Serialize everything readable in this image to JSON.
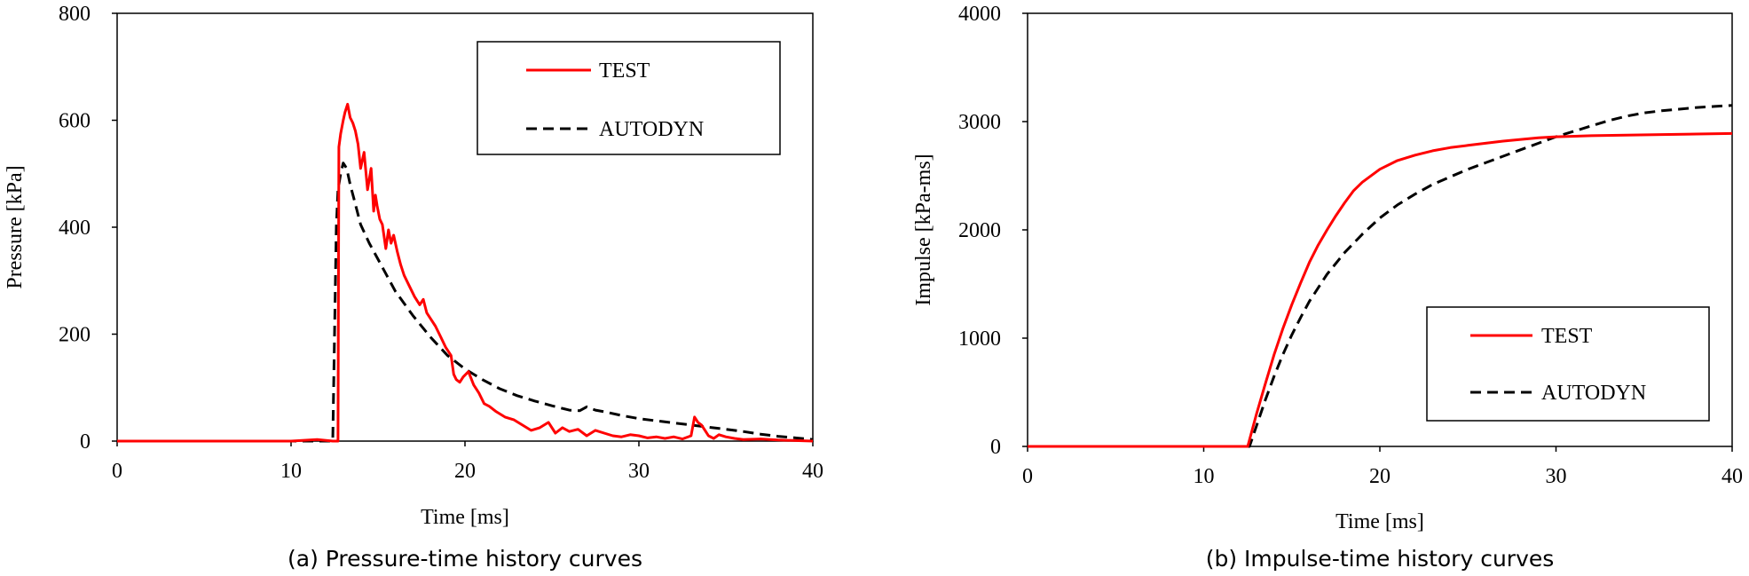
{
  "colors": {
    "test": "#ff0000",
    "autodyn": "#000000"
  },
  "chart_data": [
    {
      "type": "line",
      "caption": "(a) Pressure-time history curves",
      "xlabel": "Time [ms]",
      "ylabel": "Pressure [kPa]",
      "xlim": [
        0,
        40
      ],
      "ylim": [
        0,
        800
      ],
      "xticks": [
        "0",
        "10",
        "20",
        "30",
        "40"
      ],
      "yticks": [
        "0",
        "200",
        "400",
        "600",
        "800"
      ],
      "grid": false,
      "legend_position": "top-right",
      "series": [
        {
          "name": "TEST",
          "color": "#ff0000",
          "dash": "solid",
          "x": [
            0,
            5,
            10,
            11.5,
            12.4,
            12.7,
            12.75,
            12.85,
            13.0,
            13.1,
            13.25,
            13.4,
            13.55,
            13.7,
            13.85,
            14.0,
            14.2,
            14.4,
            14.6,
            14.75,
            14.85,
            14.95,
            15.1,
            15.25,
            15.45,
            15.6,
            15.75,
            15.9,
            16.1,
            16.3,
            16.5,
            16.8,
            17.1,
            17.4,
            17.6,
            17.8,
            18.0,
            18.3,
            18.6,
            18.9,
            19.2,
            19.35,
            19.5,
            19.7,
            19.9,
            20.2,
            20.5,
            20.8,
            21.1,
            21.4,
            21.8,
            22.3,
            22.8,
            23.3,
            23.8,
            24.3,
            24.8,
            25.2,
            25.6,
            26.0,
            26.5,
            27.0,
            27.5,
            28.0,
            28.5,
            29.0,
            29.5,
            30.0,
            30.5,
            31.0,
            31.5,
            32.0,
            32.5,
            33.0,
            33.2,
            33.4,
            33.6,
            33.8,
            34.0,
            34.3,
            34.6,
            35.0,
            35.5,
            36.0,
            37.0,
            38.0,
            39.0,
            40.0
          ],
          "y": [
            0,
            0,
            0,
            3,
            0,
            0,
            550,
            575,
            600,
            615,
            630,
            605,
            595,
            580,
            555,
            510,
            540,
            470,
            510,
            430,
            460,
            440,
            415,
            405,
            360,
            395,
            370,
            385,
            355,
            330,
            310,
            290,
            270,
            255,
            265,
            240,
            230,
            215,
            195,
            175,
            160,
            125,
            115,
            110,
            120,
            130,
            105,
            90,
            70,
            65,
            55,
            45,
            40,
            30,
            20,
            25,
            35,
            15,
            25,
            18,
            22,
            10,
            20,
            15,
            10,
            8,
            12,
            10,
            6,
            8,
            5,
            8,
            4,
            10,
            45,
            35,
            30,
            20,
            10,
            5,
            12,
            8,
            5,
            3,
            4,
            2,
            1,
            0
          ]
        },
        {
          "name": "AUTODYN",
          "color": "#000000",
          "dash": "dashed",
          "x": [
            0,
            10,
            12.4,
            12.5,
            12.6,
            12.7,
            12.85,
            13.0,
            13.2,
            13.4,
            13.6,
            13.8,
            14.0,
            14.5,
            15.0,
            15.5,
            16.0,
            17.0,
            18.0,
            19.0,
            20.0,
            21.0,
            22.0,
            23.0,
            24.0,
            25.0,
            26.0,
            26.6,
            27.0,
            27.5,
            28.0,
            29.0,
            30.0,
            31.0,
            32.0,
            33.0,
            34.0,
            35.0,
            36.0,
            37.0,
            38.0,
            39.0,
            40.0
          ],
          "y": [
            0,
            0,
            0,
            200,
            400,
            470,
            500,
            520,
            510,
            480,
            455,
            430,
            405,
            370,
            340,
            310,
            280,
            235,
            195,
            160,
            135,
            115,
            98,
            85,
            75,
            66,
            58,
            57,
            64,
            58,
            55,
            48,
            42,
            38,
            34,
            30,
            26,
            22,
            18,
            13,
            9,
            6,
            3
          ]
        }
      ]
    },
    {
      "type": "line",
      "caption": "(b) Impulse-time history curves",
      "xlabel": "Time [ms]",
      "ylabel": "Impulse [kPa-ms]",
      "xlim": [
        0,
        40
      ],
      "ylim": [
        0,
        4000
      ],
      "xticks": [
        "0",
        "10",
        "20",
        "30",
        "40"
      ],
      "yticks": [
        "0",
        "1000",
        "2000",
        "3000",
        "4000"
      ],
      "grid": false,
      "legend_position": "bottom-right",
      "series": [
        {
          "name": "TEST",
          "color": "#ff0000",
          "dash": "solid",
          "x": [
            0,
            12.5,
            13.0,
            13.5,
            14.0,
            14.5,
            15.0,
            15.5,
            16.0,
            16.5,
            17.0,
            17.5,
            18.0,
            18.5,
            19.0,
            20.0,
            21.0,
            22.0,
            23.0,
            24.0,
            25.0,
            26.0,
            27.0,
            28.0,
            29.0,
            30.0,
            32.0,
            34.0,
            36.0,
            38.0,
            40.0
          ],
          "y": [
            0,
            0,
            300,
            580,
            850,
            1090,
            1310,
            1510,
            1700,
            1860,
            2000,
            2130,
            2250,
            2360,
            2440,
            2560,
            2640,
            2690,
            2730,
            2760,
            2780,
            2800,
            2820,
            2835,
            2850,
            2860,
            2870,
            2875,
            2880,
            2885,
            2890
          ]
        },
        {
          "name": "AUTODYN",
          "color": "#000000",
          "dash": "dashed",
          "x": [
            0,
            12.6,
            13.0,
            13.5,
            14.0,
            14.5,
            15.0,
            15.5,
            16.0,
            17.0,
            18.0,
            19.0,
            20.0,
            21.0,
            22.0,
            23.0,
            24.0,
            25.0,
            26.0,
            27.0,
            28.0,
            29.0,
            30.0,
            31.0,
            32.0,
            33.0,
            34.0,
            35.0,
            36.0,
            37.0,
            38.0,
            39.0,
            40.0
          ],
          "y": [
            0,
            0,
            190,
            430,
            650,
            850,
            1030,
            1190,
            1340,
            1590,
            1790,
            1960,
            2110,
            2230,
            2330,
            2420,
            2490,
            2560,
            2620,
            2680,
            2740,
            2800,
            2860,
            2910,
            2960,
            3010,
            3050,
            3080,
            3100,
            3115,
            3130,
            3140,
            3150
          ]
        }
      ]
    }
  ]
}
